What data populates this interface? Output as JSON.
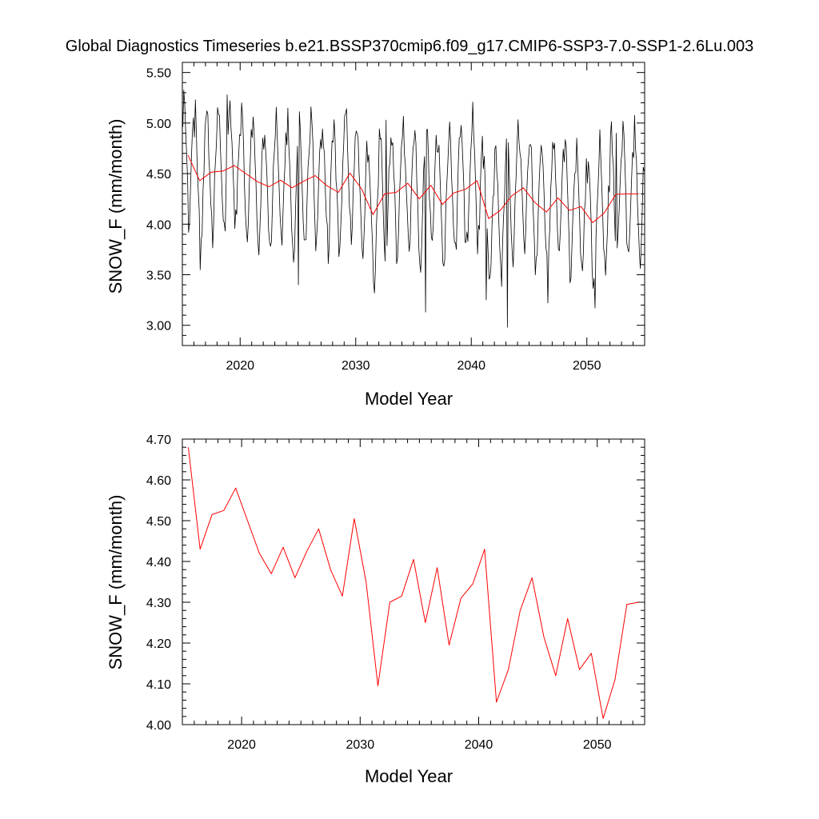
{
  "figure": {
    "title": "Global Diagnostics Timeseries b.e21.BSSP370cmip6.f09_g17.CMIP6-SSP3-7.0-SSP1-2.6Lu.003"
  },
  "chart_data": [
    {
      "type": "line",
      "xlabel": "Model Year",
      "ylabel": "SNOW_F (mm/month)",
      "xlim": [
        2015,
        2055
      ],
      "ylim": [
        2.8,
        5.6
      ],
      "x_ticks": [
        2020,
        2030,
        2040,
        2050
      ],
      "x_tick_labels": [
        "2020",
        "2030",
        "2040",
        "2050"
      ],
      "y_ticks": [
        3.0,
        3.5,
        4.0,
        4.5,
        5.0,
        5.5
      ],
      "y_tick_labels": [
        "3.00",
        "3.50",
        "4.00",
        "4.50",
        "5.00",
        "5.50"
      ],
      "grid": false,
      "series": [
        {
          "color": "#000000",
          "monthly_start_year": 2015.0,
          "seasonal_cycle": [
            0.45,
            0.55,
            0.45,
            0.2,
            -0.05,
            -0.35,
            -0.5,
            -0.55,
            -0.4,
            -0.1,
            0.15,
            0.35
          ],
          "extremes": [
            {
              "x": 2016.1,
              "y": 5.23
            },
            {
              "x": 2016.55,
              "y": 3.55
            },
            {
              "x": 2018.9,
              "y": 5.28
            },
            {
              "x": 2025.05,
              "y": 3.4
            },
            {
              "x": 2031.6,
              "y": 3.32
            },
            {
              "x": 2036.0,
              "y": 3.13
            },
            {
              "x": 2041.3,
              "y": 3.25
            },
            {
              "x": 2043.1,
              "y": 2.98
            },
            {
              "x": 2046.6,
              "y": 3.22
            },
            {
              "x": 2050.7,
              "y": 3.17
            },
            {
              "x": 2052.5,
              "y": 4.9
            },
            {
              "x": 2032.6,
              "y": 5.03
            }
          ]
        },
        {
          "color": "#ff0000",
          "x": [
            2015.5,
            2016.5,
            2017.5,
            2018.5,
            2019.5,
            2020.5,
            2021.5,
            2022.5,
            2023.5,
            2024.5,
            2025.5,
            2026.5,
            2027.5,
            2028.5,
            2029.5,
            2030.5,
            2031.5,
            2032.5,
            2033.5,
            2034.5,
            2035.5,
            2036.5,
            2037.5,
            2038.5,
            2039.5,
            2040.5,
            2041.5,
            2042.5,
            2043.5,
            2044.5,
            2045.5,
            2046.5,
            2047.5,
            2048.5,
            2049.5,
            2050.5,
            2051.5,
            2052.5,
            2053.5,
            2054.5
          ],
          "y": [
            4.68,
            4.43,
            4.515,
            4.525,
            4.58,
            4.5,
            4.42,
            4.37,
            4.435,
            4.36,
            4.425,
            4.48,
            4.38,
            4.315,
            4.505,
            4.35,
            4.095,
            4.3,
            4.315,
            4.405,
            4.25,
            4.385,
            4.195,
            4.31,
            4.345,
            4.43,
            4.055,
            4.135,
            4.28,
            4.36,
            4.215,
            4.12,
            4.26,
            4.135,
            4.175,
            4.015,
            4.11,
            4.295,
            4.3,
            4.3
          ]
        }
      ]
    },
    {
      "type": "line",
      "xlabel": "Model Year",
      "ylabel": "SNOW_F (mm/month)",
      "xlim": [
        2015,
        2054
      ],
      "ylim": [
        4.0,
        4.7
      ],
      "x_ticks": [
        2020,
        2030,
        2040,
        2050
      ],
      "x_tick_labels": [
        "2020",
        "2030",
        "2040",
        "2050"
      ],
      "y_ticks": [
        4.0,
        4.1,
        4.2,
        4.3,
        4.4,
        4.5,
        4.6,
        4.7
      ],
      "y_tick_labels": [
        "4.00",
        "4.10",
        "4.20",
        "4.30",
        "4.40",
        "4.50",
        "4.60",
        "4.70"
      ],
      "grid": false,
      "series": [
        {
          "color": "#ff0000",
          "x": [
            2015.5,
            2016.5,
            2017.5,
            2018.5,
            2019.5,
            2020.5,
            2021.5,
            2022.5,
            2023.5,
            2024.5,
            2025.5,
            2026.5,
            2027.5,
            2028.5,
            2029.5,
            2030.5,
            2031.5,
            2032.5,
            2033.5,
            2034.5,
            2035.5,
            2036.5,
            2037.5,
            2038.5,
            2039.5,
            2040.5,
            2041.5,
            2042.5,
            2043.5,
            2044.5,
            2045.5,
            2046.5,
            2047.5,
            2048.5,
            2049.5,
            2050.5,
            2051.5,
            2052.5,
            2053.5
          ],
          "y": [
            4.68,
            4.43,
            4.515,
            4.525,
            4.58,
            4.5,
            4.42,
            4.37,
            4.435,
            4.36,
            4.425,
            4.48,
            4.38,
            4.315,
            4.505,
            4.35,
            4.095,
            4.3,
            4.315,
            4.405,
            4.25,
            4.385,
            4.195,
            4.31,
            4.345,
            4.43,
            4.055,
            4.135,
            4.28,
            4.36,
            4.215,
            4.12,
            4.26,
            4.135,
            4.175,
            4.015,
            4.11,
            4.295,
            4.3
          ]
        }
      ]
    }
  ]
}
